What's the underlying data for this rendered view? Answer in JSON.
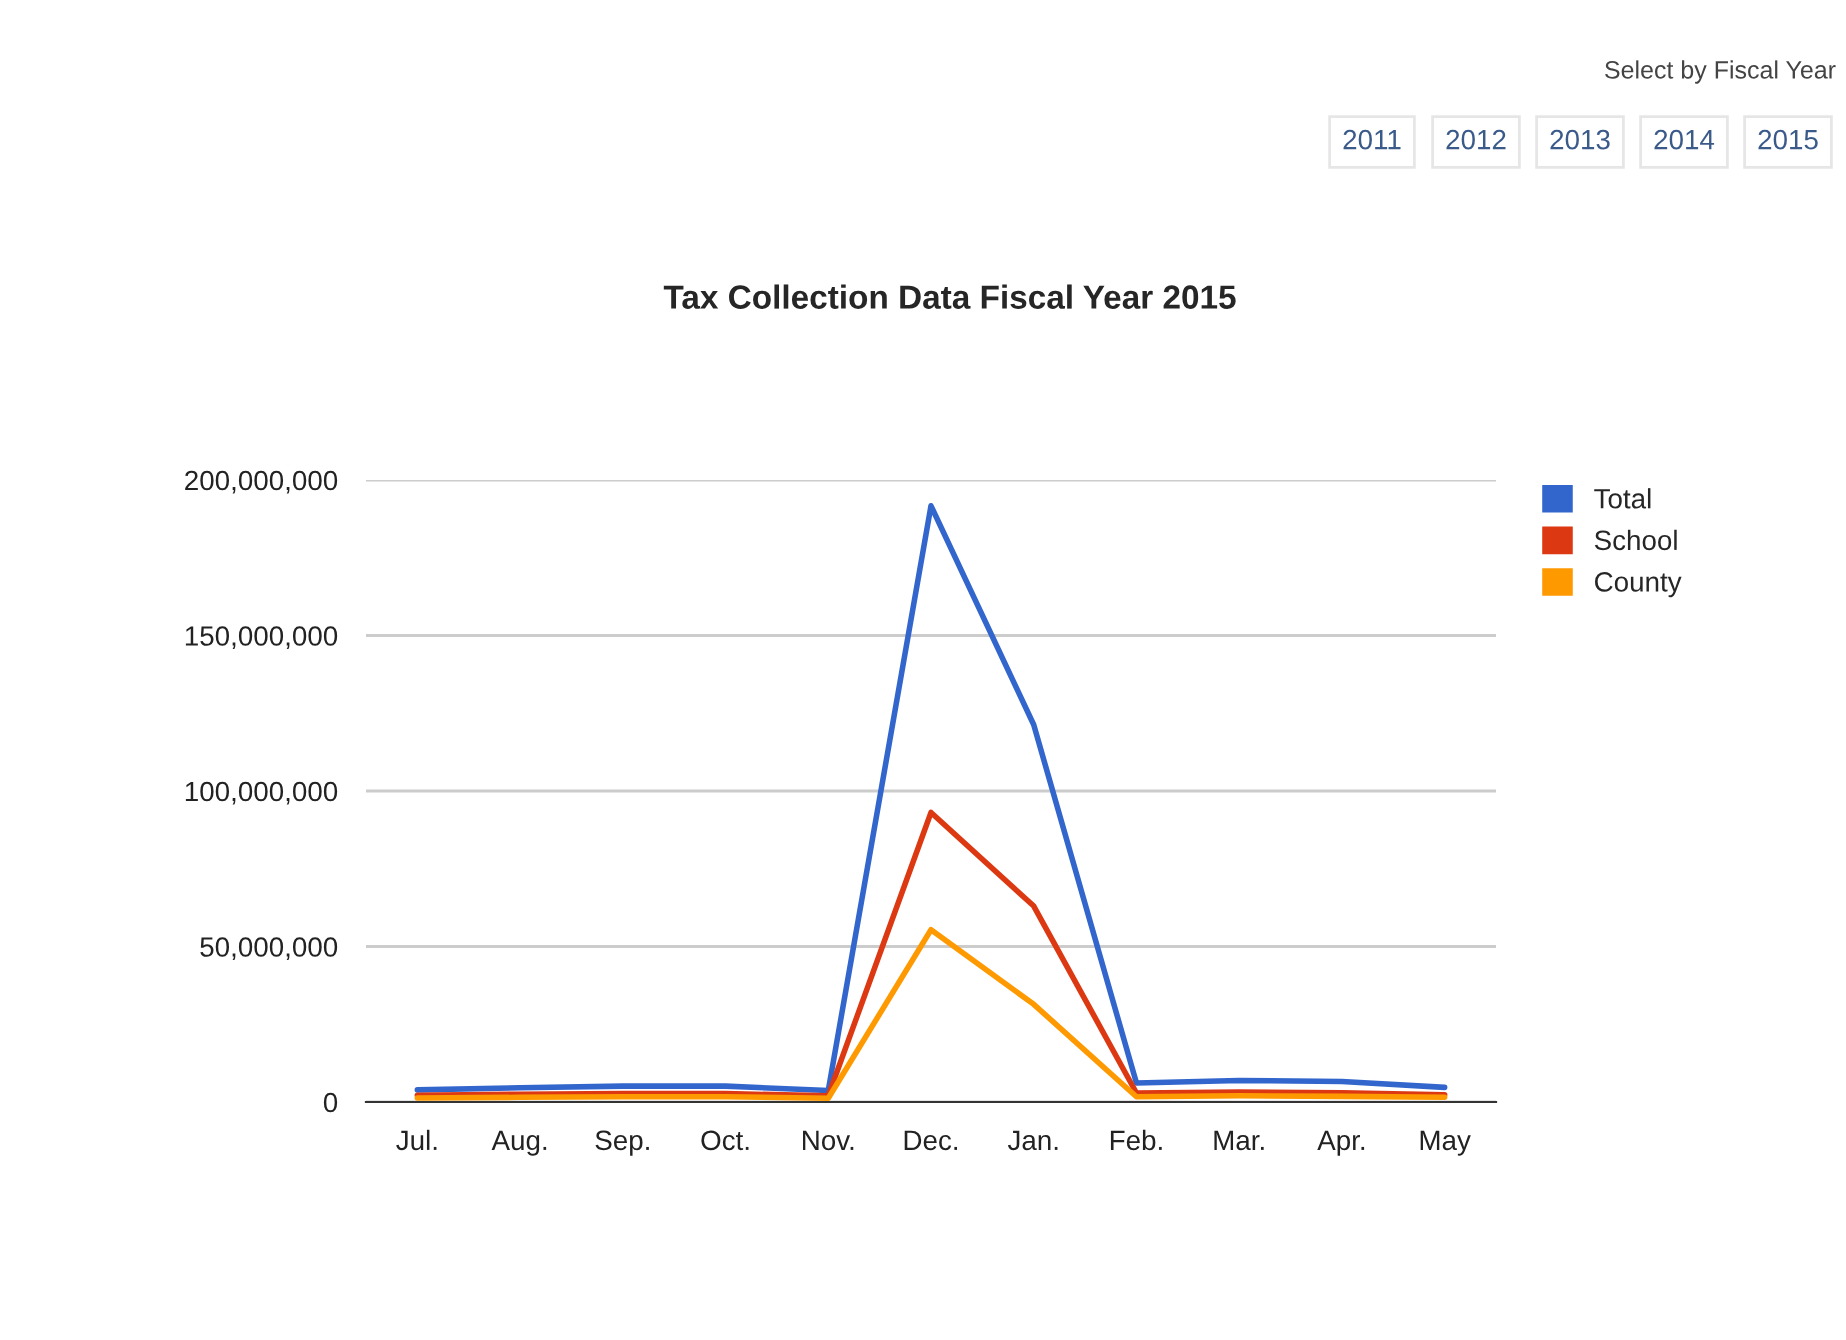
{
  "chart_data": {
    "type": "line",
    "title": "Tax Collection Data Fiscal Year 2015",
    "categories": [
      "Jul.",
      "Aug.",
      "Sep.",
      "Oct.",
      "Nov.",
      "Dec.",
      "Jan.",
      "Feb.",
      "Mar.",
      "Apr.",
      "May"
    ],
    "series": [
      {
        "name": "Total",
        "color": "#3366cc",
        "values": [
          3900000,
          4600000,
          5100000,
          5100000,
          3700000,
          191700000,
          121300000,
          6100000,
          6900000,
          6600000,
          4700000
        ]
      },
      {
        "name": "School",
        "color": "#dc3912",
        "values": [
          2200000,
          2500000,
          2700000,
          2700000,
          2000000,
          93100000,
          63000000,
          2900000,
          3200000,
          3000000,
          2300000
        ]
      },
      {
        "name": "County",
        "color": "#ff9900",
        "values": [
          1300000,
          1500000,
          1700000,
          1700000,
          1200000,
          55400000,
          31400000,
          1700000,
          2000000,
          1800000,
          1500000
        ]
      }
    ],
    "ylim": [
      0,
      200000000
    ],
    "yticks": [
      {
        "value": 0,
        "label": "0"
      },
      {
        "value": 50000000,
        "label": "50,000,000"
      },
      {
        "value": 100000000,
        "label": "100,000,000"
      },
      {
        "value": 150000000,
        "label": "150,000,000"
      },
      {
        "value": 200000000,
        "label": "200,000,000"
      }
    ],
    "grid": "y",
    "legend": "top right",
    "marker": "none",
    "line_style": "solid",
    "annotations": [
      "Select by Fiscal Year",
      "2011",
      "2012",
      "2013",
      "2014",
      "2015"
    ]
  }
}
